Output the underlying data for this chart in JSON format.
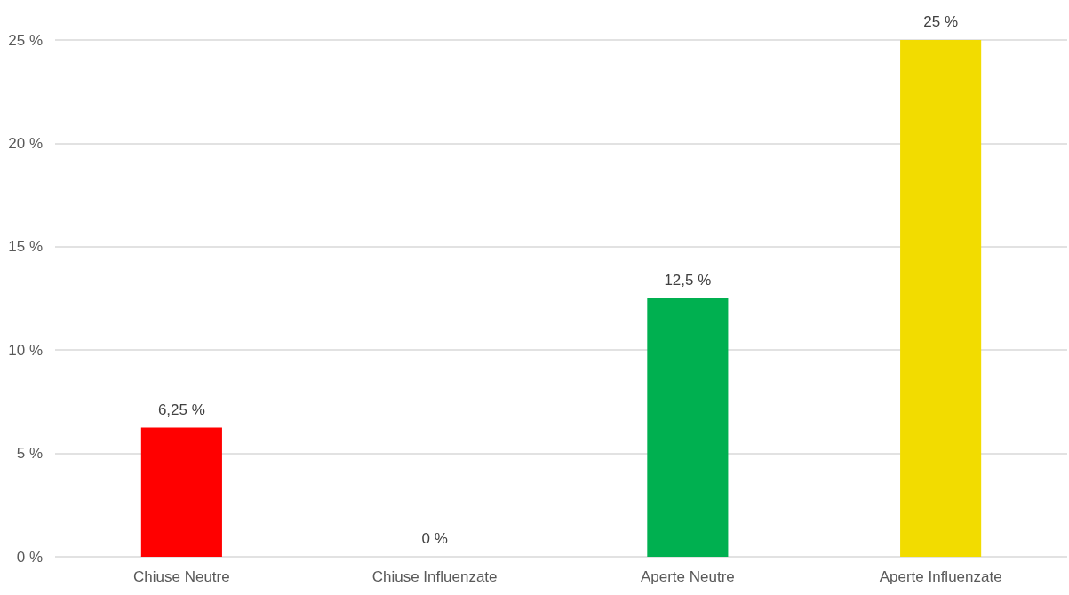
{
  "chart_data": {
    "type": "bar",
    "categories": [
      "Chiuse Neutre",
      "Chiuse Influenzate",
      "Aperte Neutre",
      "Aperte Influenzate"
    ],
    "values": [
      6.25,
      0,
      12.5,
      25
    ],
    "colors": [
      "#ff0000",
      "#4472c4",
      "#00b050",
      "#f2dc00"
    ],
    "value_labels": [
      "6,25 %",
      "0 %",
      "12,5 %",
      "25 %"
    ],
    "ylim": [
      0,
      25
    ],
    "yticks": [
      {
        "value": 0,
        "label": "0 %"
      },
      {
        "value": 5,
        "label": "5 %"
      },
      {
        "value": 10,
        "label": "10 %"
      },
      {
        "value": 15,
        "label": "15 %"
      },
      {
        "value": 20,
        "label": "20 %"
      },
      {
        "value": 25,
        "label": "25 %"
      }
    ],
    "grid": "y"
  }
}
